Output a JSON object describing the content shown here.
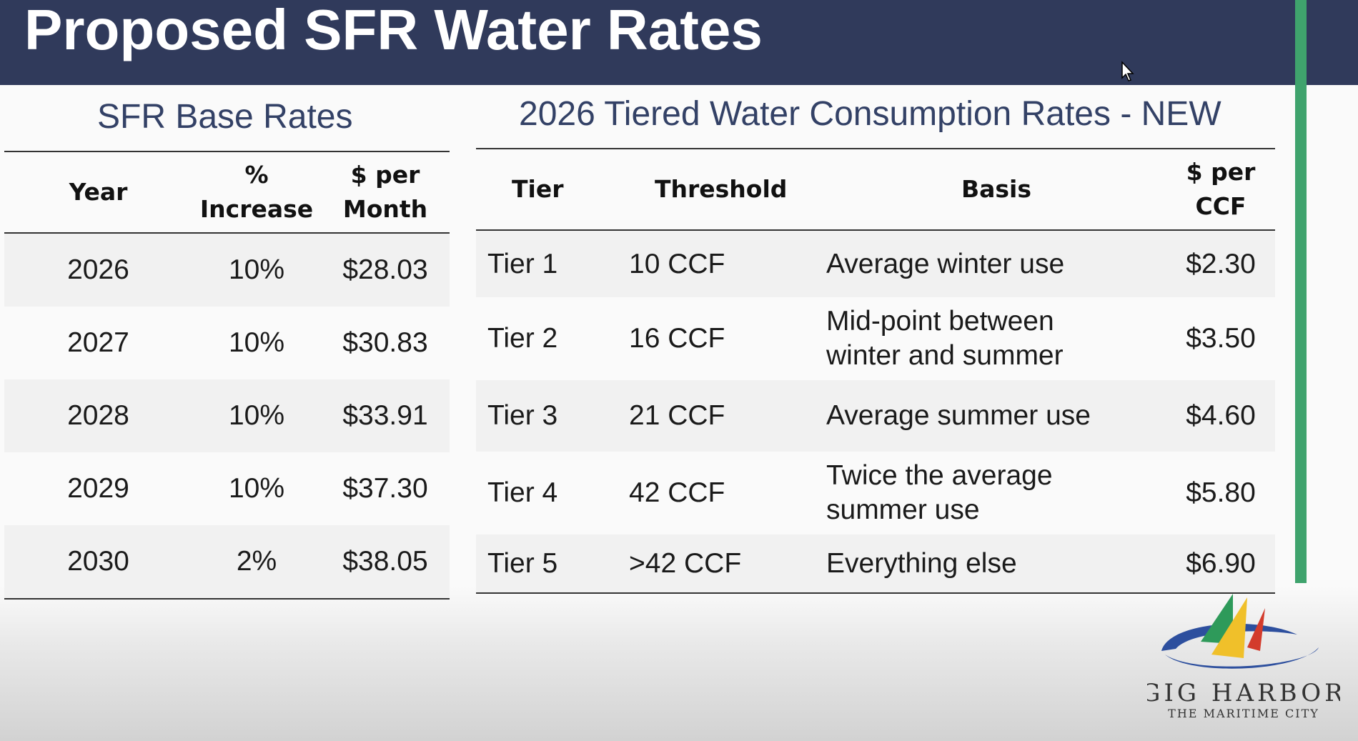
{
  "slide": {
    "title": "Proposed SFR Water Rates",
    "accent_color": "#3fa36d",
    "title_bar_color": "#303a5b"
  },
  "base_rates": {
    "heading": "SFR Base Rates",
    "columns": {
      "year": "Year",
      "increase_line1": "%",
      "increase_line2": "Increase",
      "per_month_line1": "$ per",
      "per_month_line2": "Month"
    },
    "rows": [
      {
        "year": "2026",
        "increase": "10%",
        "per_month": "$28.03"
      },
      {
        "year": "2027",
        "increase": "10%",
        "per_month": "$30.83"
      },
      {
        "year": "2028",
        "increase": "10%",
        "per_month": "$33.91"
      },
      {
        "year": "2029",
        "increase": "10%",
        "per_month": "$37.30"
      },
      {
        "year": "2030",
        "increase": "2%",
        "per_month": "$38.05"
      }
    ]
  },
  "tiered_rates": {
    "heading": "2026 Tiered Water Consumption Rates - NEW",
    "columns": {
      "tier": "Tier",
      "threshold": "Threshold",
      "basis": "Basis",
      "per_ccf": "$ per CCF"
    },
    "rows": [
      {
        "tier": "Tier 1",
        "threshold": "10 CCF",
        "basis": "Average winter use",
        "per_ccf": "$2.30"
      },
      {
        "tier": "Tier 2",
        "threshold": "16 CCF",
        "basis_line1": "Mid-point between",
        "basis_line2": "winter and summer",
        "per_ccf": "$3.50"
      },
      {
        "tier": "Tier 3",
        "threshold": "21 CCF",
        "basis": "Average summer use",
        "per_ccf": "$4.60"
      },
      {
        "tier": "Tier 4",
        "threshold": "42 CCF",
        "basis_line1": "Twice the average",
        "basis_line2": "summer use",
        "per_ccf": "$5.80"
      },
      {
        "tier": "Tier 5",
        "threshold": ">42 CCF",
        "basis": "Everything else",
        "per_ccf": "$6.90"
      }
    ]
  },
  "logo": {
    "name": "GIG HARBOR",
    "tagline": "THE MARITIME CITY",
    "icon": "sailboats-logo-icon"
  }
}
